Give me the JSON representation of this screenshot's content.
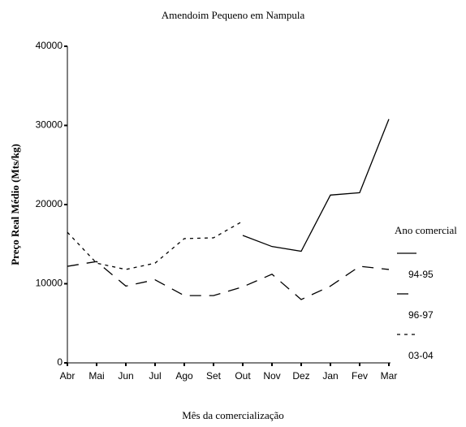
{
  "chart_data": {
    "type": "line",
    "title": "Amendoim Pequeno em Nampula",
    "xlabel": "Mês da comercialização",
    "ylabel": "Preço Real Médio (Mts/kg)",
    "categories": [
      "Abr",
      "Mai",
      "Jun",
      "Jul",
      "Ago",
      "Set",
      "Out",
      "Nov",
      "Dez",
      "Jan",
      "Fev",
      "Mar"
    ],
    "series": [
      {
        "name": "94-95",
        "color": "#000000",
        "dash": "solid",
        "values": [
          null,
          null,
          null,
          null,
          null,
          null,
          16100,
          14700,
          14100,
          21200,
          21500,
          30800
        ]
      },
      {
        "name": "96-97",
        "color": "#000000",
        "dash": "long",
        "values": [
          12200,
          12800,
          9700,
          10500,
          8500,
          8500,
          9600,
          11200,
          8000,
          9700,
          12200,
          11800
        ]
      },
      {
        "name": "03-04",
        "color": "#000000",
        "dash": "short",
        "values": [
          16500,
          12600,
          11800,
          12600,
          15700,
          15800,
          17900,
          null,
          null,
          null,
          null,
          null
        ]
      }
    ],
    "legend_title": "Ano comercial",
    "ylim": [
      0,
      40000
    ],
    "yticks": [
      0,
      10000,
      20000,
      30000,
      40000
    ],
    "grid": false
  }
}
